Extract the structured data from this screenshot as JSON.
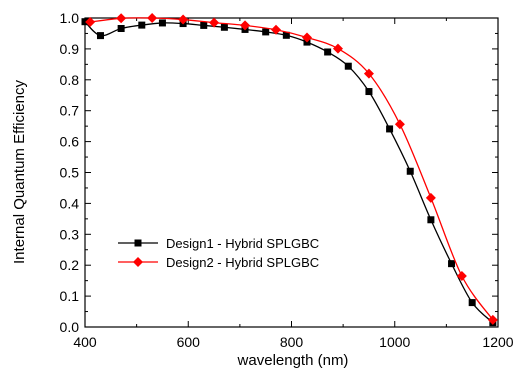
{
  "chart_data": {
    "type": "line",
    "title": "",
    "xlabel": "wavelength (nm)",
    "ylabel": "Internal Quantum Efficiency",
    "xlim": [
      400,
      1200
    ],
    "ylim": [
      0.0,
      1.0
    ],
    "xticks": [
      400,
      600,
      800,
      1000,
      1200
    ],
    "yticks": [
      0.0,
      0.1,
      0.2,
      0.3,
      0.4,
      0.5,
      0.6,
      0.7,
      0.8,
      0.9,
      1.0
    ],
    "xtick_labels": [
      "400",
      "600",
      "800",
      "1000",
      "1200"
    ],
    "ytick_labels": [
      "0.0",
      "0.1",
      "0.2",
      "0.3",
      "0.4",
      "0.5",
      "0.6",
      "0.7",
      "0.8",
      "0.9",
      "1.0"
    ],
    "grid": false,
    "legend_position": "lower-left",
    "series": [
      {
        "name": "Design1 - Hybrid SPLGBC",
        "color": "#000000",
        "marker": "square",
        "x": [
          400,
          430,
          470,
          510,
          550,
          590,
          630,
          670,
          710,
          750,
          790,
          830,
          870,
          910,
          950,
          990,
          1030,
          1070,
          1110,
          1150,
          1190
        ],
        "y": [
          0.988,
          0.943,
          0.966,
          0.977,
          0.984,
          0.982,
          0.976,
          0.97,
          0.963,
          0.955,
          0.944,
          0.922,
          0.89,
          0.844,
          0.762,
          0.641,
          0.504,
          0.347,
          0.205,
          0.079,
          0.014
        ]
      },
      {
        "name": "Design2 - Hybrid SPLGBC",
        "color": "#ff0000",
        "marker": "diamond",
        "x": [
          410,
          470,
          530,
          590,
          650,
          710,
          770,
          830,
          890,
          950,
          1010,
          1070,
          1130,
          1190
        ],
        "y": [
          0.987,
          0.999,
          1.0,
          0.995,
          0.985,
          0.976,
          0.962,
          0.937,
          0.901,
          0.82,
          0.656,
          0.418,
          0.165,
          0.023
        ]
      }
    ]
  }
}
